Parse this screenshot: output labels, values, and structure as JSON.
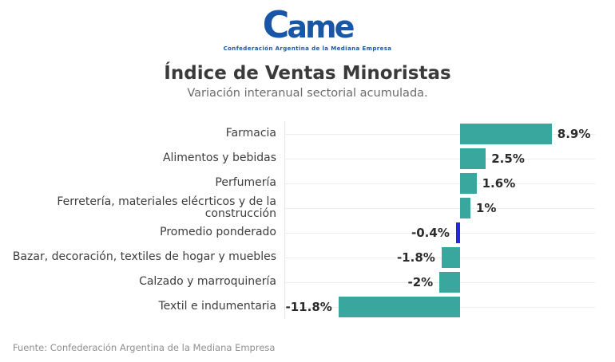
{
  "header": {
    "logo_text_c": "C",
    "logo_text_ame": "ame",
    "logo_tagline": "Confederación Argentina de la Mediana Empresa",
    "title": "Índice de Ventas Minoristas",
    "subtitle": "Variación interanual sectorial acumulada."
  },
  "colors": {
    "bar_teal": "#3aa79f",
    "bar_highlight_blue": "#2328d8",
    "logo_blue": "#1856a8",
    "gridline": "#ededed",
    "axis_line": "#e4e4e4"
  },
  "chart_data": {
    "type": "bar",
    "orientation": "horizontal",
    "title": "Índice de Ventas Minoristas",
    "subtitle": "Variación interanual sectorial acumulada.",
    "xlabel": "",
    "ylabel": "",
    "grid": true,
    "legend": false,
    "xlim": [
      -17,
      13
    ],
    "unit": "%",
    "categories": [
      "Farmacia",
      "Alimentos y bebidas",
      "Perfumería",
      "Ferretería, materiales elécrticos y de la\nconstrucción",
      "Promedio ponderado",
      "Bazar, decoración, textiles de hogar y muebles",
      "Calzado y marroquinería",
      "Textil e indumentaria"
    ],
    "values": [
      8.9,
      2.5,
      1.6,
      1.0,
      -0.4,
      -1.8,
      -2.0,
      -11.8
    ],
    "value_labels": [
      "8.9%",
      "2.5%",
      "1.6%",
      "1%",
      "-0.4%",
      "-1.8%",
      "-2%",
      "-11.8%"
    ],
    "highlight_index": 4,
    "highlight_category": "Promedio ponderado"
  },
  "footer": {
    "source": "Fuente: Confederación Argentina de la Mediana Empresa"
  }
}
